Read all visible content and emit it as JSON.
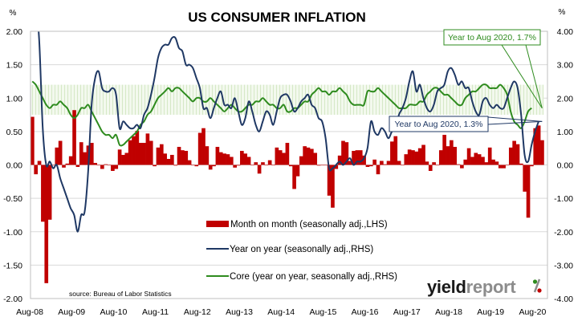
{
  "chart_data": {
    "type": "bar+line",
    "title": "US CONSUMER INFLATION",
    "left_axis": {
      "unit_label": "%",
      "range": [
        -2.0,
        2.0
      ],
      "ticks": [
        "2.00",
        "1.50",
        "1.00",
        "0.50",
        "0.00",
        "-0.50",
        "-1.00",
        "-1.50",
        "-2.00"
      ],
      "tick_values": [
        2.0,
        1.5,
        1.0,
        0.5,
        0.0,
        -0.5,
        -1.0,
        -1.5,
        -2.0
      ]
    },
    "right_axis": {
      "unit_label": "%",
      "range": [
        -4.0,
        4.0
      ],
      "ticks": [
        "4.00",
        "3.00",
        "2.00",
        "1.00",
        "0.00",
        "-1.00",
        "-2.00",
        "-3.00",
        "-4.00"
      ],
      "tick_values": [
        4.0,
        3.0,
        2.0,
        1.0,
        0.0,
        -1.0,
        -2.0,
        -3.0,
        -4.0
      ]
    },
    "x_tick_labels": [
      "Aug-08",
      "Aug-09",
      "Aug-10",
      "Aug-11",
      "Aug-12",
      "Aug-13",
      "Aug-14",
      "Aug-15",
      "Aug-16",
      "Aug-17",
      "Aug-18",
      "Aug-19",
      "Aug-20"
    ],
    "x_start": "Aug-08",
    "x_end": "Aug-20",
    "target_band_rhs": [
      1.5,
      2.4
    ],
    "grid": "horizontal",
    "legend_position": "bottom-center",
    "series": [
      {
        "name": "Month on month (seasonally adj.,LHS)",
        "type": "bar",
        "axis": "left",
        "color": "#c00000",
        "values": [
          0.72,
          -0.14,
          0.06,
          -0.85,
          -1.77,
          -0.82,
          0.0,
          0.26,
          0.36,
          -0.04,
          0.02,
          0.13,
          0.82,
          -0.03,
          0.34,
          0.19,
          0.29,
          0.33,
          0.03,
          0.0,
          -0.06,
          0.01,
          0.0,
          -0.09,
          -0.06,
          0.23,
          0.15,
          0.18,
          0.37,
          0.43,
          0.51,
          0.33,
          0.33,
          0.47,
          0.36,
          -0.02,
          0.26,
          0.31,
          0.17,
          0.09,
          0.15,
          -0.01,
          0.27,
          0.22,
          0.21,
          0.07,
          0.0,
          -0.02,
          0.48,
          0.55,
          0.28,
          -0.07,
          -0.02,
          0.27,
          0.19,
          0.17,
          0.16,
          0.12,
          -0.04,
          -0.01,
          0.21,
          0.17,
          0.12,
          0.0,
          0.04,
          -0.13,
          0.04,
          0.0,
          0.07,
          0.0,
          0.26,
          0.22,
          0.18,
          0.33,
          -0.02,
          -0.36,
          -0.17,
          0.13,
          0.28,
          0.26,
          0.24,
          0.18,
          -0.01,
          0.0,
          0.0,
          -0.46,
          -0.64,
          -0.06,
          0.14,
          0.36,
          0.34,
          0.06,
          0.21,
          0.22,
          0.22,
          0.14,
          -0.03,
          -0.02,
          0.08,
          -0.14,
          0.06,
          0.01,
          0.06,
          0.35,
          0.43,
          0.06,
          0.0,
          0.16,
          0.23,
          0.22,
          0.2,
          0.25,
          0.3,
          0.05,
          -0.09,
          0.04,
          0.0,
          0.22,
          0.45,
          0.28,
          0.37,
          0.27,
          0.01,
          -0.05,
          0.08,
          0.25,
          0.12,
          0.18,
          0.16,
          0.12,
          0.04,
          0.26,
          0.08,
          0.05,
          -0.05,
          -0.05,
          0.0,
          0.26,
          0.36,
          0.31,
          0.02,
          -0.4,
          -0.79,
          -0.02,
          0.55,
          0.59,
          0.37
        ]
      },
      {
        "name": "Year on year (seasonally adj.,RHS)",
        "type": "line",
        "axis": "right",
        "color": "#1f3864",
        "values": [
          5.4,
          4.9,
          3.7,
          1.1,
          0.0,
          0.1,
          -0.1,
          0.0,
          -0.4,
          -0.7,
          -1.0,
          -1.3,
          -1.5,
          -2.0,
          -1.5,
          -1.4,
          -0.2,
          1.8,
          2.6,
          2.8,
          2.3,
          2.2,
          2.2,
          2.3,
          2.1,
          1.1,
          1.3,
          1.2,
          1.1,
          1.1,
          1.2,
          1.1,
          1.5,
          1.7,
          2.1,
          2.6,
          3.2,
          3.5,
          3.6,
          3.6,
          3.8,
          3.8,
          3.5,
          3.4,
          3.0,
          3.0,
          2.9,
          2.6,
          2.3,
          1.7,
          1.7,
          1.4,
          1.7,
          2.0,
          2.2,
          1.8,
          1.8,
          1.7,
          2.0,
          1.6,
          1.2,
          1.4,
          1.9,
          1.6,
          1.2,
          1.0,
          1.3,
          1.6,
          1.5,
          1.2,
          1.6,
          2.0,
          2.1,
          2.1,
          1.9,
          1.6,
          1.7,
          1.9,
          2.0,
          2.1,
          1.8,
          1.7,
          1.4,
          1.3,
          0.8,
          -0.1,
          -0.1,
          0.0,
          0.1,
          0.0,
          0.1,
          0.2,
          0.0,
          0.1,
          0.1,
          0.2,
          0.5,
          1.3,
          1.0,
          0.9,
          1.1,
          1.0,
          0.8,
          1.0,
          1.1,
          1.5,
          1.7,
          2.0,
          2.5,
          2.8,
          2.2,
          2.4,
          2.0,
          1.7,
          1.6,
          1.8,
          2.2,
          2.3,
          2.4,
          2.8,
          2.9,
          2.7,
          2.4,
          2.5,
          2.3,
          2.3,
          1.9,
          1.6,
          1.5,
          1.9,
          2.0,
          1.8,
          1.7,
          1.8,
          1.7,
          1.7,
          2.0,
          2.3,
          2.5,
          2.3,
          1.5,
          0.3,
          0.1,
          0.6,
          1.0,
          1.3
        ]
      },
      {
        "name": "Core (year on year, seasonally adj.,RHS)",
        "type": "line",
        "axis": "right",
        "color": "#2e8b1e",
        "values": [
          2.5,
          2.4,
          2.2,
          2.0,
          1.8,
          1.7,
          1.8,
          1.8,
          1.9,
          1.8,
          1.7,
          1.5,
          1.4,
          1.5,
          1.7,
          1.7,
          1.8,
          1.6,
          1.4,
          1.2,
          1.0,
          0.9,
          0.9,
          0.8,
          0.9,
          0.6,
          0.6,
          0.7,
          0.8,
          0.9,
          1.0,
          1.2,
          1.3,
          1.5,
          1.6,
          1.8,
          2.0,
          2.1,
          2.2,
          2.3,
          2.2,
          2.3,
          2.3,
          2.2,
          2.1,
          2.0,
          1.9,
          2.0,
          2.0,
          1.9,
          1.9,
          2.0,
          1.9,
          1.8,
          1.7,
          1.6,
          1.7,
          1.8,
          1.7,
          1.6,
          1.6,
          1.7,
          1.8,
          1.8,
          1.9,
          1.9,
          2.0,
          1.9,
          1.8,
          1.8,
          1.7,
          1.7,
          1.8,
          1.6,
          1.6,
          1.7,
          1.7,
          1.8,
          1.9,
          1.9,
          2.1,
          2.2,
          2.3,
          2.2,
          2.2,
          2.1,
          2.2,
          2.2,
          2.3,
          2.2,
          2.1,
          1.9,
          1.8,
          1.8,
          1.8,
          1.8,
          2.2,
          2.2,
          2.2,
          2.3,
          2.2,
          2.1,
          2.0,
          1.9,
          1.8,
          1.7,
          1.7,
          1.7,
          1.8,
          1.8,
          1.8,
          1.9,
          1.9,
          2.1,
          2.2,
          2.3,
          2.3,
          2.2,
          2.1,
          2.1,
          2.0,
          1.9,
          1.8,
          1.8,
          2.0,
          2.1,
          2.2,
          2.2,
          2.3,
          2.4,
          2.4,
          2.3,
          2.3,
          2.3,
          2.4,
          2.3,
          2.1,
          1.6,
          1.3,
          1.2,
          1.1,
          1.3,
          1.6,
          1.7
        ]
      }
    ],
    "annotations": [
      {
        "text": "Year to Aug 2020, 1.7%",
        "series": "Core (year on year, seasonally adj.,RHS)",
        "value": 1.7,
        "color": "#2e8b1e"
      },
      {
        "text": "Year to Aug 2020, 1.3%",
        "series": "Year on year (seasonally adj.,RHS)",
        "value": 1.3,
        "color": "#1f3864"
      }
    ],
    "source": "source: Bureau of Labor Statistics"
  },
  "branding": {
    "logo_bold": "yield",
    "logo_light": "report",
    "logo_symbol": "%"
  }
}
